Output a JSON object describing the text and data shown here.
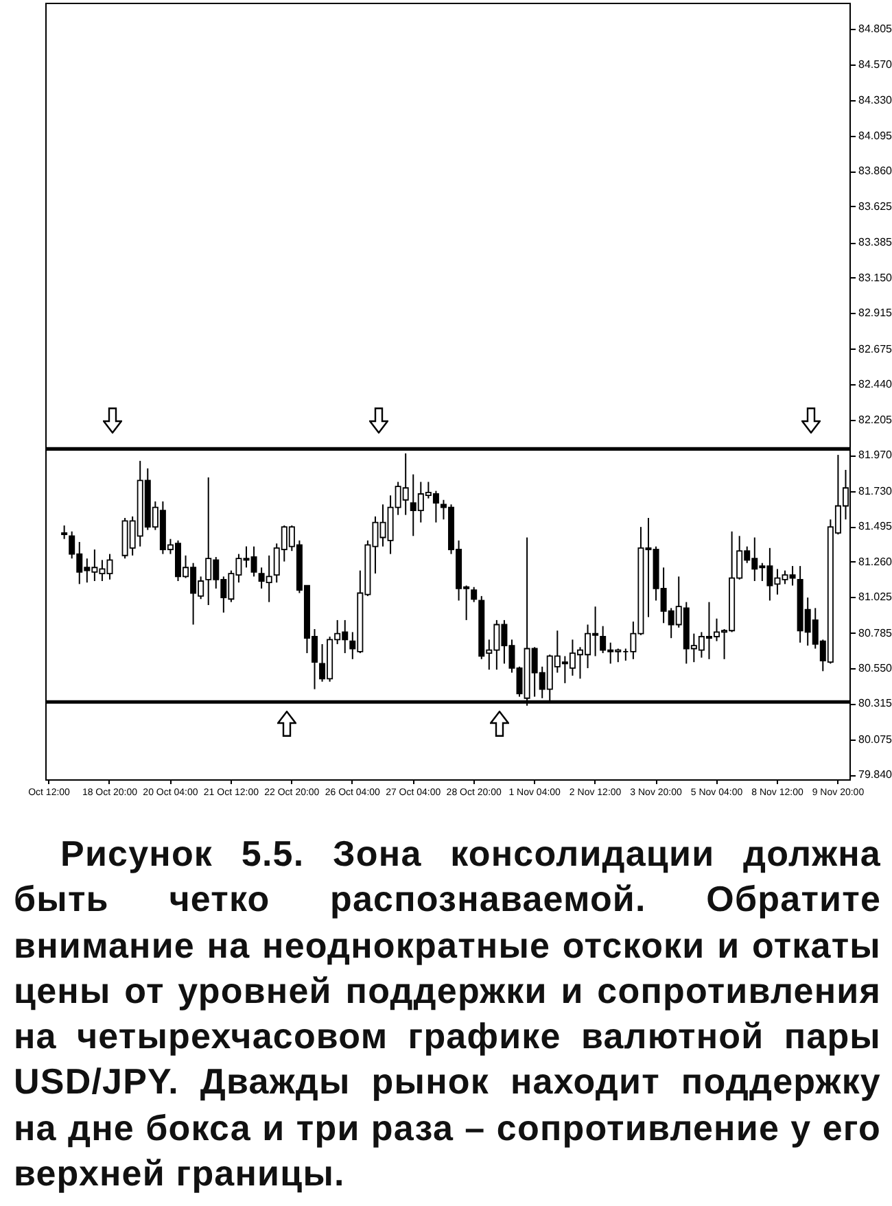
{
  "chart_data": {
    "type": "candlestick",
    "categories": [
      "Oct 12:00",
      null,
      null,
      null,
      null,
      null,
      null,
      null,
      "18 Oct 20:00",
      null,
      null,
      null,
      null,
      null,
      null,
      null,
      "20 Oct 04:00",
      null,
      null,
      null,
      null,
      null,
      null,
      null,
      "21 Oct 12:00",
      null,
      null,
      null,
      null,
      null,
      null,
      null,
      "22 Oct 20:00",
      null,
      null,
      null,
      null,
      null,
      null,
      null,
      "26 Oct 04:00",
      null,
      null,
      null,
      null,
      null,
      null,
      null,
      "27 Oct 04:00",
      null,
      null,
      null,
      null,
      null,
      null,
      null,
      "28 Oct 20:00",
      null,
      null,
      null,
      null,
      null,
      null,
      null,
      "1 Nov 04:00",
      null,
      null,
      null,
      null,
      null,
      null,
      null,
      "2 Nov 12:00",
      null,
      null,
      null,
      null,
      null,
      null,
      null,
      "3 Nov 20:00",
      null,
      null,
      null,
      null,
      null,
      null,
      null,
      "5 Nov 04:00",
      null,
      null,
      null,
      null,
      null,
      null,
      null,
      "8 Nov 12:00",
      null,
      null,
      null,
      null,
      null,
      null,
      null,
      "9 Nov 20:00",
      null
    ],
    "ohlc": [
      null,
      null,
      [
        81.45,
        81.5,
        81.41,
        81.44
      ],
      [
        81.43,
        81.46,
        81.28,
        81.31
      ],
      [
        81.31,
        81.39,
        81.11,
        81.19
      ],
      [
        81.22,
        81.28,
        81.12,
        81.2
      ],
      [
        81.19,
        81.34,
        81.13,
        81.22
      ],
      [
        81.18,
        81.27,
        81.13,
        81.21
      ],
      [
        81.18,
        81.31,
        81.14,
        81.27
      ],
      null,
      [
        81.3,
        81.55,
        81.28,
        81.53
      ],
      [
        81.35,
        81.56,
        81.3,
        81.53
      ],
      [
        81.43,
        81.93,
        81.36,
        81.8
      ],
      [
        81.8,
        81.88,
        81.47,
        81.49
      ],
      [
        81.49,
        81.66,
        81.47,
        81.62
      ],
      [
        81.6,
        81.66,
        81.31,
        81.34
      ],
      [
        81.34,
        81.41,
        81.31,
        81.37
      ],
      [
        81.38,
        81.4,
        81.13,
        81.16
      ],
      [
        81.16,
        81.3,
        81.15,
        81.22
      ],
      [
        81.22,
        81.25,
        80.84,
        81.05
      ],
      [
        81.03,
        81.16,
        81.01,
        81.13
      ],
      [
        81.14,
        81.82,
        80.97,
        81.28
      ],
      [
        81.27,
        81.29,
        81.08,
        81.14
      ],
      [
        81.14,
        81.16,
        80.92,
        81.02
      ],
      [
        81.01,
        81.2,
        80.99,
        81.18
      ],
      [
        81.17,
        81.31,
        81.12,
        81.28
      ],
      [
        81.28,
        81.36,
        81.22,
        81.27
      ],
      [
        81.29,
        81.36,
        81.16,
        81.19
      ],
      [
        81.18,
        81.22,
        81.08,
        81.13
      ],
      [
        81.12,
        81.3,
        80.99,
        81.16
      ],
      [
        81.17,
        81.38,
        81.12,
        81.35
      ],
      [
        81.34,
        81.5,
        81.26,
        81.49
      ],
      [
        81.36,
        81.5,
        81.33,
        81.49
      ],
      [
        81.37,
        81.4,
        81.05,
        81.07
      ],
      [
        81.1,
        81.1,
        80.65,
        80.75
      ],
      [
        80.76,
        80.81,
        80.41,
        80.59
      ],
      [
        80.58,
        80.71,
        80.46,
        80.48
      ],
      [
        80.48,
        80.76,
        80.46,
        80.74
      ],
      [
        80.74,
        80.87,
        80.71,
        80.78
      ],
      [
        80.79,
        80.87,
        80.65,
        80.74
      ],
      [
        80.73,
        80.79,
        80.61,
        80.68
      ],
      [
        80.66,
        81.2,
        80.65,
        81.05
      ],
      [
        81.04,
        81.4,
        81.03,
        81.37
      ],
      [
        81.36,
        81.56,
        81.18,
        81.52
      ],
      [
        81.42,
        81.64,
        81.36,
        81.52
      ],
      [
        81.4,
        81.7,
        81.31,
        81.62
      ],
      [
        81.62,
        81.79,
        81.57,
        81.76
      ],
      [
        81.67,
        81.98,
        81.57,
        81.75
      ],
      [
        81.65,
        81.84,
        81.43,
        81.6
      ],
      [
        81.6,
        81.79,
        81.52,
        81.71
      ],
      [
        81.7,
        81.79,
        81.68,
        81.72
      ],
      [
        81.71,
        81.73,
        81.52,
        81.65
      ],
      [
        81.64,
        81.67,
        81.54,
        81.62
      ],
      [
        81.62,
        81.64,
        81.31,
        81.34
      ],
      [
        81.34,
        81.4,
        81.0,
        81.08
      ],
      [
        81.09,
        81.1,
        80.87,
        81.08
      ],
      [
        81.07,
        81.09,
        80.99,
        81.01
      ],
      [
        81.0,
        81.03,
        80.61,
        80.63
      ],
      [
        80.65,
        80.74,
        80.54,
        80.67
      ],
      [
        80.67,
        80.87,
        80.54,
        80.84
      ],
      [
        80.84,
        80.87,
        80.58,
        80.7
      ],
      [
        80.7,
        80.74,
        80.52,
        80.55
      ],
      [
        80.55,
        80.56,
        80.36,
        80.38
      ],
      [
        80.35,
        81.42,
        80.3,
        80.68
      ],
      [
        80.68,
        80.69,
        80.36,
        80.52
      ],
      [
        80.52,
        80.56,
        80.35,
        80.41
      ],
      [
        80.41,
        80.64,
        80.33,
        80.63
      ],
      [
        80.56,
        80.8,
        80.52,
        80.63
      ],
      [
        80.59,
        80.63,
        80.45,
        80.58
      ],
      [
        80.55,
        80.74,
        80.5,
        80.65
      ],
      [
        80.64,
        80.69,
        80.48,
        80.67
      ],
      [
        80.64,
        80.84,
        80.55,
        80.78
      ],
      [
        80.78,
        80.96,
        80.63,
        80.77
      ],
      [
        80.76,
        80.83,
        80.65,
        80.67
      ],
      [
        80.67,
        80.72,
        80.58,
        80.66
      ],
      [
        80.66,
        80.68,
        80.59,
        80.67
      ],
      [
        80.66,
        80.68,
        80.6,
        80.66
      ],
      [
        80.66,
        80.86,
        80.61,
        80.78
      ],
      [
        80.78,
        81.49,
        80.77,
        81.35
      ],
      [
        81.35,
        81.55,
        80.89,
        81.34
      ],
      [
        81.34,
        81.36,
        81.0,
        81.08
      ],
      [
        81.08,
        81.22,
        80.85,
        80.93
      ],
      [
        80.93,
        80.95,
        80.75,
        80.84
      ],
      [
        80.84,
        81.16,
        80.82,
        80.96
      ],
      [
        80.95,
        80.99,
        80.58,
        80.68
      ],
      [
        80.68,
        80.78,
        80.59,
        80.7
      ],
      [
        80.67,
        80.79,
        80.62,
        80.76
      ],
      [
        80.76,
        80.99,
        80.61,
        80.75
      ],
      [
        80.76,
        80.88,
        80.73,
        80.79
      ],
      [
        80.79,
        80.81,
        80.61,
        80.8
      ],
      [
        80.8,
        81.46,
        80.79,
        81.15
      ],
      [
        81.15,
        81.43,
        81.14,
        81.33
      ],
      [
        81.33,
        81.36,
        81.25,
        81.27
      ],
      [
        81.28,
        81.42,
        81.13,
        81.21
      ],
      [
        81.23,
        81.25,
        81.13,
        81.22
      ],
      [
        81.23,
        81.35,
        81.0,
        81.1
      ],
      [
        81.11,
        81.21,
        81.04,
        81.15
      ],
      [
        81.14,
        81.2,
        81.11,
        81.17
      ],
      [
        81.17,
        81.23,
        81.1,
        81.15
      ],
      [
        81.14,
        81.23,
        80.72,
        80.8
      ],
      [
        80.94,
        81.02,
        80.7,
        80.79
      ],
      [
        80.87,
        80.95,
        80.68,
        80.71
      ],
      [
        80.73,
        80.74,
        80.53,
        80.6
      ],
      [
        80.59,
        81.54,
        80.58,
        81.49
      ],
      [
        81.45,
        81.97,
        81.44,
        81.63
      ],
      [
        81.63,
        81.87,
        81.54,
        81.75
      ]
    ],
    "ylim": [
      79.81,
      84.98
    ],
    "yticks": [
      84.805,
      {
        "value": 84.57,
        "label": "84.570"
      },
      {
        "value": 84.33,
        "label": "84.330"
      },
      84.095,
      {
        "value": 83.86,
        "label": "83.860"
      },
      83.625,
      83.385,
      {
        "value": 83.15,
        "label": "83.150"
      },
      82.915,
      82.675,
      {
        "value": 82.44,
        "label": "82.440"
      },
      82.205,
      {
        "value": 81.97,
        "label": "81.970"
      },
      {
        "value": 81.73,
        "label": "81.730"
      },
      81.495,
      {
        "value": 81.26,
        "label": "81.260"
      },
      81.025,
      80.785,
      {
        "value": 80.55,
        "label": "80.550"
      },
      80.315,
      80.075,
      {
        "value": 79.84,
        "label": "79.840"
      }
    ],
    "ref_lines": [
      {
        "axis": "y",
        "value": 82.01,
        "color": "#000000"
      },
      {
        "axis": "y",
        "value": 80.325,
        "color": "#000000"
      }
    ],
    "annotations": [
      "Рисунок 5.5. Зона консолидации должна быть четко распознаваемой. Обратите внимание на неоднократные отскоки и откаты цены от уровней поддержки и сопротивления на четырехчасовом графике валютной пары USD/JPY. Дважды рынок находит поддержку на дне бокса и три раза – сопротивление у его верхней границы."
    ]
  }
}
